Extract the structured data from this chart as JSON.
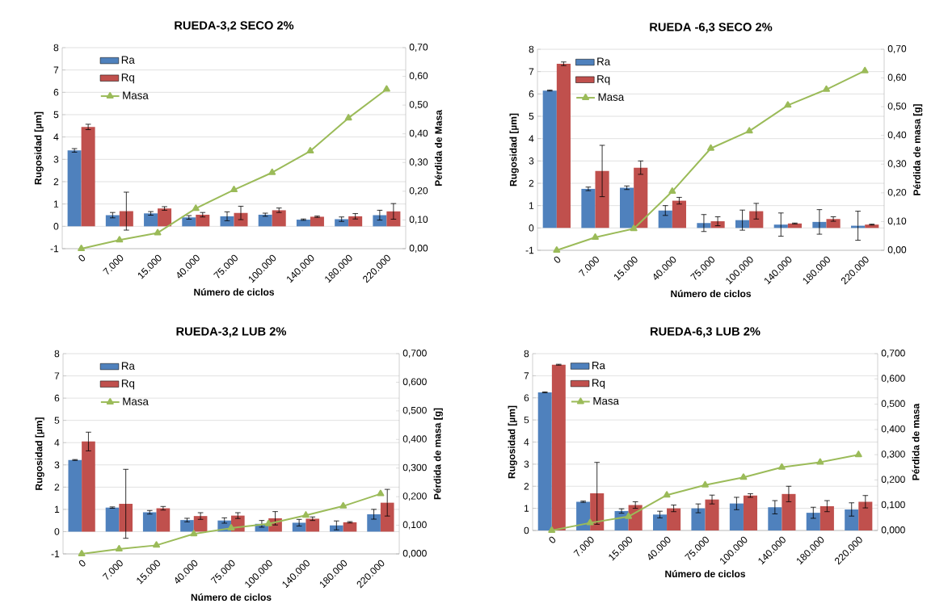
{
  "chart_data": [
    {
      "type": "bar",
      "title": "RUEDA-3,2 SECO 2%",
      "xlabel": "Número de ciclos",
      "ylabel": "Rugosidad [µm]",
      "y2label": "Pérdida de Masa",
      "categories": [
        "0",
        "7.000",
        "15.000",
        "40.000",
        "75.000",
        "100.000",
        "140.000",
        "180.000",
        "220.000"
      ],
      "series": [
        {
          "name": "Ra",
          "color": "#4f81bd",
          "values": [
            3.4,
            0.5,
            0.58,
            0.4,
            0.45,
            0.52,
            0.3,
            0.32,
            0.5
          ],
          "errors": [
            0.08,
            0.12,
            0.08,
            0.08,
            0.2,
            0.07,
            0.03,
            0.1,
            0.22
          ]
        },
        {
          "name": "Rq",
          "color": "#c0504d",
          "values": [
            4.45,
            0.68,
            0.8,
            0.52,
            0.6,
            0.72,
            0.43,
            0.45,
            0.67
          ],
          "errors": [
            0.12,
            0.85,
            0.08,
            0.1,
            0.3,
            0.1,
            0.03,
            0.12,
            0.35
          ]
        },
        {
          "name": "Masa",
          "type": "line",
          "axis": "y2",
          "marker": "triangle",
          "color": "#9bbb59",
          "values": [
            0.0,
            0.03,
            0.055,
            0.14,
            0.205,
            0.265,
            0.34,
            0.455,
            0.555
          ]
        }
      ],
      "ylim": [
        -1,
        8
      ],
      "yticks": [
        -1,
        0,
        1,
        2,
        3,
        4,
        5,
        6,
        7,
        8
      ],
      "y2lim": [
        0,
        0.7
      ],
      "y2ticks": [
        {
          "value": 0,
          "label": "0,00"
        },
        {
          "value": 0.1,
          "label": "0,10"
        },
        {
          "value": 0.2,
          "label": "0,20"
        },
        {
          "value": 0.3,
          "label": "0,30"
        },
        {
          "value": 0.4,
          "label": "0,40"
        },
        {
          "value": 0.5,
          "label": "0,50"
        },
        {
          "value": 0.6,
          "label": "0,60"
        },
        {
          "value": 0.7,
          "label": "0,70"
        }
      ],
      "grid": "y",
      "legend": "top left"
    },
    {
      "type": "bar",
      "title": "RUEDA -6,3 SECO 2%",
      "xlabel": "Número de ciclos",
      "ylabel": "Rugosidad [µm]",
      "y2label": "Pérdida de masa [g]",
      "categories": [
        "0",
        "7.000",
        "15.000",
        "40.000",
        "75.000",
        "100.000",
        "140.000",
        "180.000",
        "220.000"
      ],
      "series": [
        {
          "name": "Ra",
          "color": "#4f81bd",
          "values": [
            6.15,
            1.75,
            1.8,
            0.78,
            0.22,
            0.35,
            0.15,
            0.27,
            0.1
          ],
          "errors": [
            0.02,
            0.08,
            0.08,
            0.22,
            0.38,
            0.45,
            0.52,
            0.55,
            0.65
          ]
        },
        {
          "name": "Rq",
          "color": "#c0504d",
          "values": [
            7.35,
            2.55,
            2.7,
            1.22,
            0.3,
            0.75,
            0.2,
            0.4,
            0.15
          ],
          "errors": [
            0.08,
            1.15,
            0.3,
            0.15,
            0.2,
            0.35,
            0.02,
            0.1,
            0.02
          ]
        },
        {
          "name": "Masa",
          "type": "line",
          "axis": "y2",
          "marker": "triangle",
          "color": "#9bbb59",
          "values": [
            0.0,
            0.045,
            0.075,
            0.205,
            0.355,
            0.415,
            0.505,
            0.56,
            0.625
          ]
        }
      ],
      "ylim": [
        -1,
        8
      ],
      "yticks": [
        -1,
        0,
        1,
        2,
        3,
        4,
        5,
        6,
        7,
        8
      ],
      "y2lim": [
        0,
        0.7
      ],
      "y2ticks": [
        {
          "value": 0,
          "label": "0,00"
        },
        {
          "value": 0.1,
          "label": "0,10"
        },
        {
          "value": 0.2,
          "label": "0,20"
        },
        {
          "value": 0.3,
          "label": "0,30"
        },
        {
          "value": 0.4,
          "label": "0,40"
        },
        {
          "value": 0.5,
          "label": "0,50"
        },
        {
          "value": 0.6,
          "label": "0,60"
        },
        {
          "value": 0.7,
          "label": "0,70"
        }
      ],
      "grid": "y",
      "legend": "top left"
    },
    {
      "type": "bar",
      "title": "RUEDA-3,2 LUB 2%",
      "xlabel": "Número de ciclos",
      "ylabel": "Rugosidad [µm]",
      "y2label": "Pérdida de masa [g]",
      "categories": [
        "0",
        "7.000",
        "15.000",
        "40.000",
        "75.000",
        "100.000",
        "140.000",
        "180.000",
        "220.000"
      ],
      "series": [
        {
          "name": "Ra",
          "color": "#4f81bd",
          "values": [
            3.22,
            1.08,
            0.87,
            0.52,
            0.5,
            0.35,
            0.4,
            0.28,
            0.78
          ],
          "errors": [
            0.02,
            0.03,
            0.08,
            0.08,
            0.12,
            0.15,
            0.15,
            0.2,
            0.22
          ]
        },
        {
          "name": "Rq",
          "color": "#c0504d",
          "values": [
            4.05,
            1.25,
            1.05,
            0.7,
            0.72,
            0.6,
            0.58,
            0.42,
            1.3
          ],
          "errors": [
            0.42,
            1.55,
            0.08,
            0.15,
            0.13,
            0.3,
            0.08,
            0.03,
            0.6
          ]
        },
        {
          "name": "Masa",
          "type": "line",
          "axis": "y2",
          "marker": "triangle",
          "color": "#9bbb59",
          "values": [
            0.0,
            0.017,
            0.03,
            0.07,
            0.09,
            0.105,
            0.135,
            0.167,
            0.21
          ]
        }
      ],
      "ylim": [
        -1,
        8
      ],
      "yticks": [
        -1,
        0,
        1,
        2,
        3,
        4,
        5,
        6,
        7,
        8
      ],
      "y2lim": [
        0,
        0.7
      ],
      "y2ticks": [
        {
          "value": 0,
          "label": "0,000"
        },
        {
          "value": 0.1,
          "label": "0,100"
        },
        {
          "value": 0.2,
          "label": "0,200"
        },
        {
          "value": 0.3,
          "label": "0,300"
        },
        {
          "value": 0.4,
          "label": "0,400"
        },
        {
          "value": 0.5,
          "label": "0,500"
        },
        {
          "value": 0.6,
          "label": "0,600"
        },
        {
          "value": 0.7,
          "label": "0,700"
        }
      ],
      "grid": "y",
      "legend": "top left"
    },
    {
      "type": "bar",
      "title": "RUEDA-6,3 LUB 2%",
      "xlabel": "Número de ciclos",
      "ylabel": "Rugosidad [µm]",
      "y2label": "Pérdida de masa",
      "categories": [
        "0",
        "7.000",
        "15.000",
        "40.000",
        "75.000",
        "100.000",
        "140.000",
        "180.000",
        "220.000"
      ],
      "series": [
        {
          "name": "Ra",
          "color": "#4f81bd",
          "values": [
            6.25,
            1.3,
            0.88,
            0.72,
            1.0,
            1.22,
            1.05,
            0.8,
            0.95
          ],
          "errors": [
            0.02,
            0.03,
            0.1,
            0.15,
            0.2,
            0.28,
            0.3,
            0.25,
            0.3
          ]
        },
        {
          "name": "Rq",
          "color": "#c0504d",
          "values": [
            7.5,
            1.68,
            1.15,
            1.0,
            1.4,
            1.58,
            1.65,
            1.1,
            1.3
          ],
          "errors": [
            0.02,
            1.4,
            0.15,
            0.15,
            0.2,
            0.08,
            0.35,
            0.25,
            0.28
          ]
        },
        {
          "name": "Masa",
          "type": "line",
          "axis": "y2",
          "marker": "triangle",
          "color": "#9bbb59",
          "values": [
            0.0,
            0.03,
            0.055,
            0.14,
            0.18,
            0.21,
            0.25,
            0.27,
            0.3
          ]
        }
      ],
      "ylim": [
        0,
        8
      ],
      "yticks": [
        0,
        1,
        2,
        3,
        4,
        5,
        6,
        7,
        8
      ],
      "y2lim": [
        0,
        0.7
      ],
      "y2ticks": [
        {
          "value": 0,
          "label": "0,000"
        },
        {
          "value": 0.1,
          "label": "0,100"
        },
        {
          "value": 0.2,
          "label": "0,200"
        },
        {
          "value": 0.3,
          "label": "0,300"
        },
        {
          "value": 0.4,
          "label": "0,400"
        },
        {
          "value": 0.5,
          "label": "0,500"
        },
        {
          "value": 0.6,
          "label": "0,600"
        },
        {
          "value": 0.7,
          "label": "0,700"
        }
      ],
      "grid": "y",
      "legend": "top left"
    }
  ]
}
